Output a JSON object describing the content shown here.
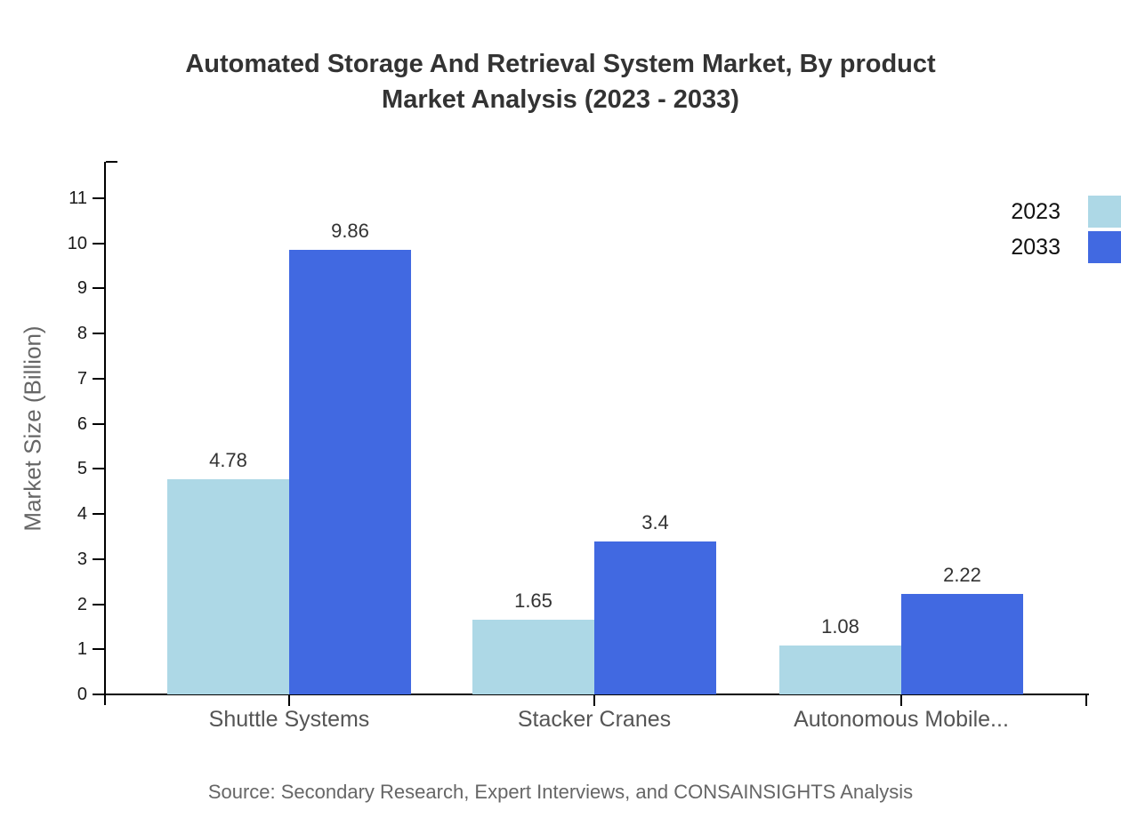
{
  "title": {
    "line1": "Automated Storage And Retrieval System Market, By product",
    "line2": "Market Analysis (2023 - 2033)"
  },
  "source": "Source: Secondary Research, Expert Interviews, and CONSAINSIGHTS Analysis",
  "chart_data": {
    "type": "bar",
    "title": "Automated Storage And Retrieval System Market, By product Market Analysis (2023 - 2033)",
    "xlabel": "",
    "ylabel": "Market Size (Billion)",
    "categories": [
      "Shuttle Systems",
      "Stacker Cranes",
      "Autonomous Mobile..."
    ],
    "series": [
      {
        "name": "2023",
        "color": "#ADD8E6",
        "values": [
          4.78,
          1.65,
          1.08
        ]
      },
      {
        "name": "2033",
        "color": "#4169E1",
        "values": [
          9.86,
          3.4,
          2.22
        ]
      }
    ],
    "yticks": [
      0,
      1,
      2,
      3,
      4,
      5,
      6,
      7,
      8,
      9,
      10,
      11
    ],
    "ylim": [
      0,
      11.8
    ],
    "grid": false,
    "legend_position": "top-right",
    "value_labels_shown": true,
    "axis_color": "#000000",
    "background_color": "#ffffff"
  }
}
